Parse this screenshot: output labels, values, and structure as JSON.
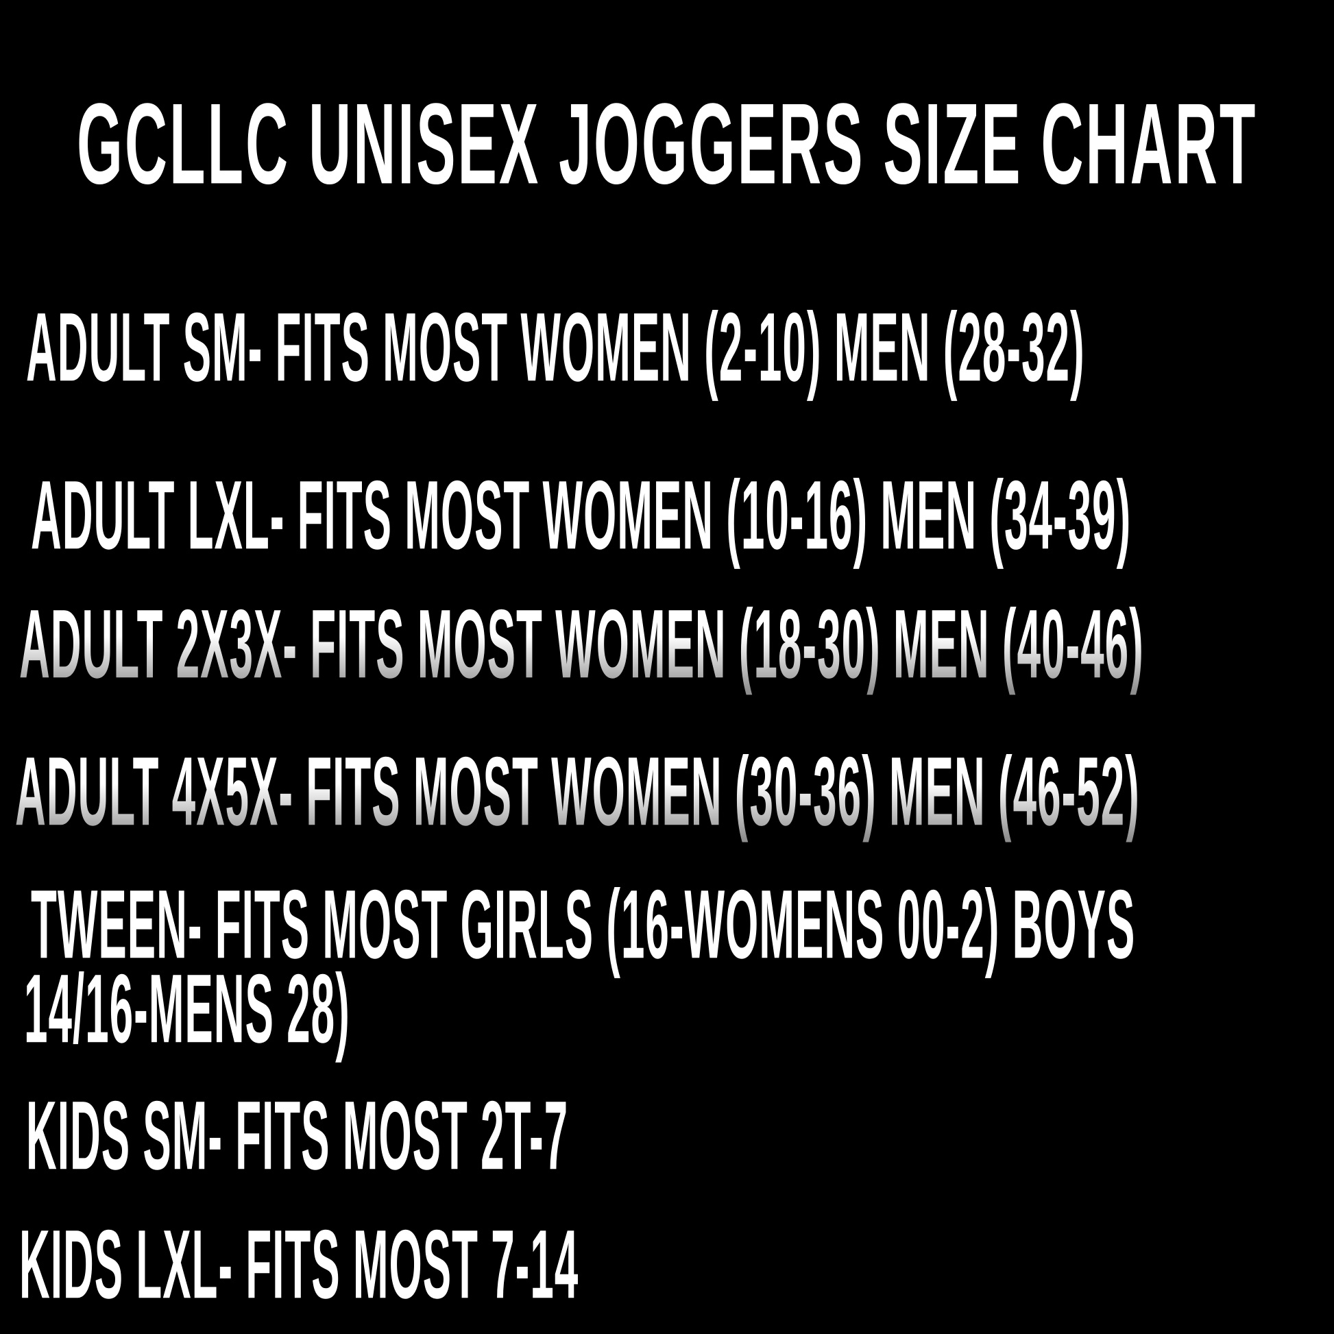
{
  "chart": {
    "title": "GCLLC UNISEX JOGGERS SIZE CHART",
    "lines": [
      {
        "id": "adult-sm",
        "text": "ADULT SM- FITS MOST WOMEN (2-10) MEN (28-32)"
      },
      {
        "id": "adult-lxl",
        "text": "ADULT LXL- FITS MOST WOMEN (10-16) MEN (34-39)"
      },
      {
        "id": "adult-2x3x",
        "text": "ADULT 2X3X- FITS MOST WOMEN (18-30) MEN (40-46)"
      },
      {
        "id": "adult-4x5x",
        "text": "ADULT 4X5X- FITS MOST WOMEN (30-36) MEN (46-52)"
      },
      {
        "id": "tween",
        "text": "TWEEN- FITS MOST GIRLS (16-WOMENS 00-2) BOYS"
      },
      {
        "id": "tween-cont",
        "text": "14/16-MENS 28)"
      },
      {
        "id": "kids-sm",
        "text": "KIDS SM- FITS MOST 2T-7"
      },
      {
        "id": "kids-lxl",
        "text": "KIDS LXL- FITS MOST 7-14"
      }
    ],
    "colors": {
      "background": "#000000",
      "text": "#ffffff",
      "text_fade": "#8f8f8f"
    }
  }
}
